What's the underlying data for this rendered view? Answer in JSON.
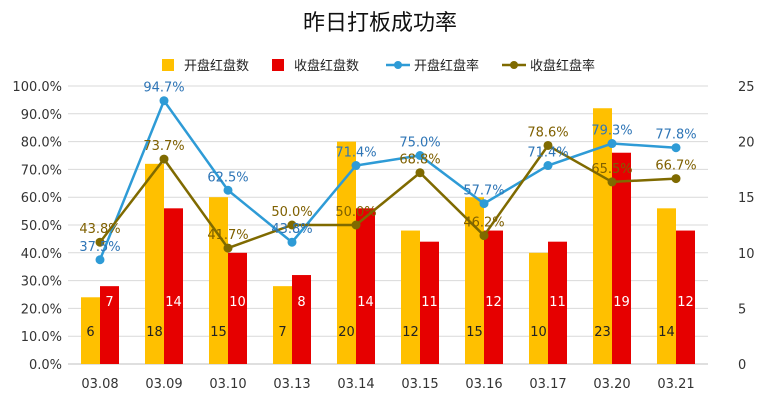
{
  "chart_data": {
    "type": "bar",
    "title": "昨日打板成功率",
    "categories": [
      "03.08",
      "03.09",
      "03.10",
      "03.13",
      "03.14",
      "03.15",
      "03.16",
      "03.17",
      "03.20",
      "03.21"
    ],
    "y_left_ticks": [
      "0.0%",
      "10.0%",
      "20.0%",
      "30.0%",
      "40.0%",
      "50.0%",
      "60.0%",
      "70.0%",
      "80.0%",
      "90.0%",
      "100.0%"
    ],
    "y_right_ticks": [
      "0",
      "5",
      "10",
      "15",
      "20",
      "25"
    ],
    "ylim_left": [
      0,
      100
    ],
    "ylim_right": [
      0,
      25
    ],
    "grid": true,
    "legend_position": "top",
    "series": [
      {
        "name": "开盘红盘数",
        "type": "bar",
        "axis": "right",
        "color": "#FFC000",
        "label_color": "#222222",
        "values": [
          6,
          18,
          15,
          7,
          20,
          12,
          15,
          10,
          23,
          14
        ]
      },
      {
        "name": "收盘红盘数",
        "type": "bar",
        "axis": "right",
        "color": "#E60000",
        "label_color": "#FFFFFF",
        "values": [
          7,
          14,
          10,
          8,
          14,
          11,
          12,
          11,
          19,
          12
        ]
      },
      {
        "name": "开盘红盘率",
        "type": "line",
        "axis": "left",
        "color": "#2E9BD6",
        "values": [
          37.5,
          94.7,
          62.5,
          43.8,
          71.4,
          75.0,
          57.7,
          71.4,
          79.3,
          77.8
        ],
        "labels": [
          "37.5%",
          "94.7%",
          "62.5%",
          "43.8%",
          "71.4%",
          "75.0%",
          "57.7%",
          "71.4%",
          "79.3%",
          "77.8%"
        ]
      },
      {
        "name": "收盘红盘率",
        "type": "line",
        "axis": "left",
        "color": "#7F6A00",
        "values": [
          43.8,
          73.7,
          41.7,
          50.0,
          50.0,
          68.8,
          46.2,
          78.6,
          65.5,
          66.7
        ],
        "labels": [
          "43.8%",
          "73.7%",
          "41.7%",
          "50.0%",
          "50.0%",
          "68.8%",
          "46.2%",
          "78.6%",
          "65.5%",
          "66.7%"
        ]
      }
    ]
  }
}
